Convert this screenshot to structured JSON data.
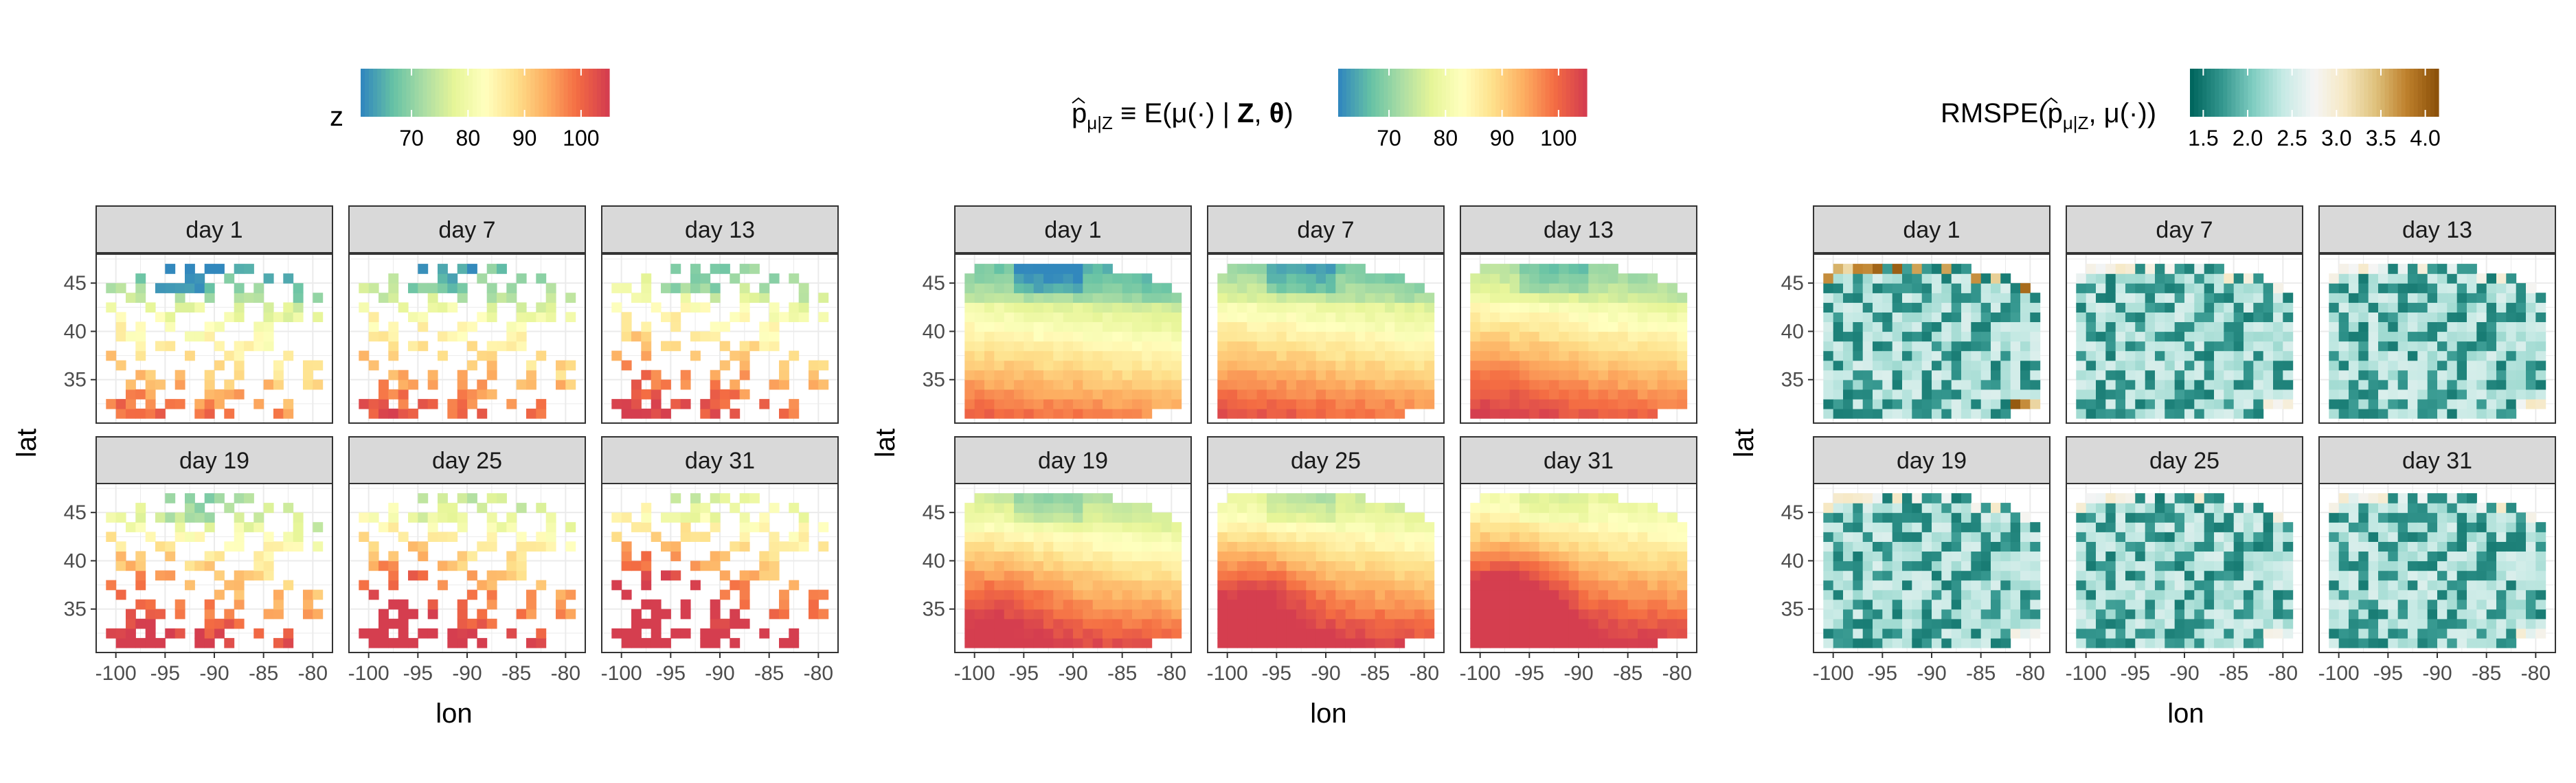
{
  "chart_data": [
    {
      "type": "heatmap",
      "title": "",
      "xlabel": "lon",
      "ylabel": "lat",
      "legend": {
        "title": "z",
        "position": "top",
        "ticks": [
          "70",
          "80",
          "90",
          "100"
        ],
        "range": [
          61,
          105
        ],
        "palette": "spectral-reversed"
      },
      "facets": [
        "day 1",
        "day 7",
        "day 13",
        "day 19",
        "day 25",
        "day 31"
      ],
      "facet_mean_values": [
        78,
        83,
        82,
        86,
        88,
        91
      ],
      "sparse": true,
      "xlim": [
        -102,
        -78
      ],
      "ylim": [
        30.5,
        48
      ],
      "x_ticks": [
        "-100",
        "-95",
        "-90",
        "-85",
        "-80"
      ],
      "y_ticks": [
        "35",
        "40",
        "45"
      ],
      "grid": true
    },
    {
      "type": "heatmap",
      "title": "",
      "xlabel": "lon",
      "ylabel": "lat",
      "legend": {
        "title_prefix": "p",
        "title_subscript": "μ|Z",
        "title_main": " ≡ E(μ(·) | ",
        "title_bold1": "Z",
        "title_sep": ", ",
        "title_bold2": "θ",
        "title_end": ")",
        "position": "top",
        "ticks": [
          "70",
          "80",
          "90",
          "100"
        ],
        "range": [
          61,
          105
        ],
        "palette": "spectral-reversed"
      },
      "facets": [
        "day 1",
        "day 7",
        "day 13",
        "day 19",
        "day 25",
        "day 31"
      ],
      "facet_mean_values": [
        78,
        83,
        82,
        86,
        88,
        91
      ],
      "sparse": false,
      "xlim": [
        -102,
        -78
      ],
      "ylim": [
        30.5,
        48
      ],
      "x_ticks": [
        "-100",
        "-95",
        "-90",
        "-85",
        "-80"
      ],
      "y_ticks": [
        "35",
        "40",
        "45"
      ],
      "grid": true
    },
    {
      "type": "heatmap",
      "title": "",
      "xlabel": "lon",
      "ylabel": "lat",
      "legend": {
        "title_prefix": "RMSPE(",
        "title_p": "p",
        "title_subscript": "μ|Z",
        "title_end": ", μ(·))",
        "position": "top",
        "ticks": [
          "1.5",
          "2.0",
          "2.5",
          "3.0",
          "3.5",
          "4.0"
        ],
        "range": [
          1.35,
          4.15
        ],
        "palette": "brown-blue-green-reversed"
      },
      "facets": [
        "day 1",
        "day 7",
        "day 13",
        "day 19",
        "day 25",
        "day 31"
      ],
      "sparse": false,
      "xlim": [
        -102,
        -78
      ],
      "ylim": [
        30.5,
        48
      ],
      "x_ticks": [
        "-100",
        "-95",
        "-90",
        "-85",
        "-80"
      ],
      "y_ticks": [
        "35",
        "40",
        "45"
      ],
      "grid": true
    }
  ]
}
